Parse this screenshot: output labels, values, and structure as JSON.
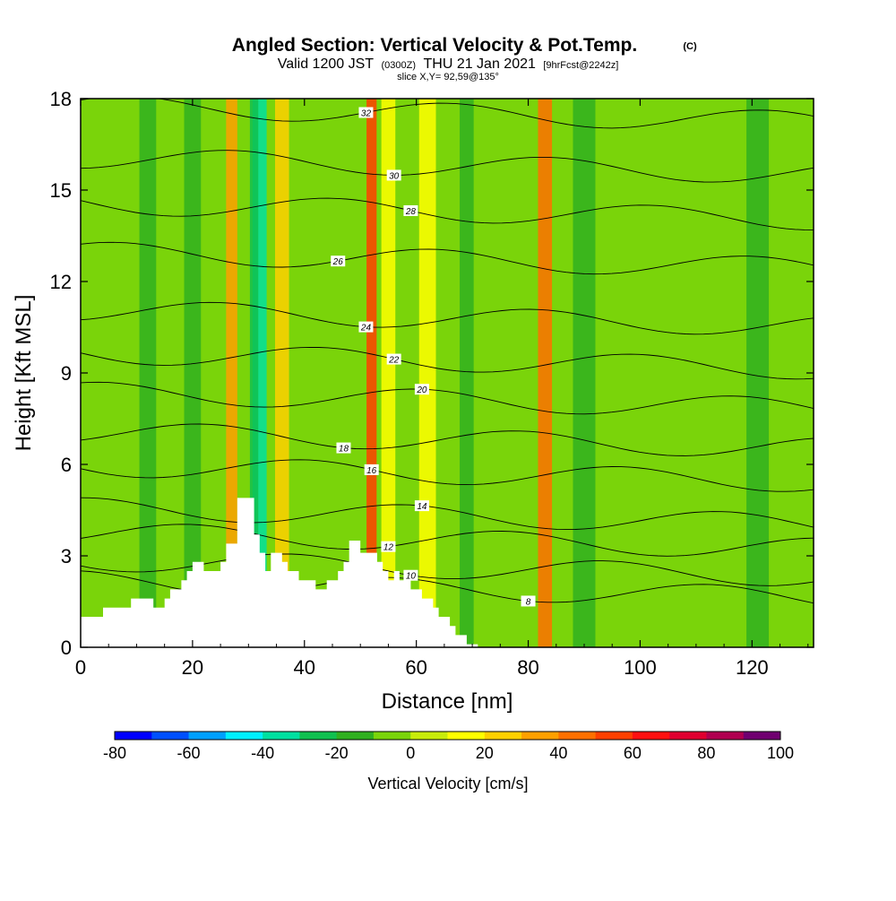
{
  "chart_data": {
    "type": "heatmap",
    "title_main": "Angled Section: Vertical Velocity & Pot.Temp.",
    "title_units": "(C)",
    "subtitle_parts": [
      "Valid 1200 JST",
      "(0300Z)",
      "THU 21 Jan 2021",
      "[9hrFcst@2242z]"
    ],
    "slice_label": "slice X,Y= 92,59@135°",
    "xlabel": "Distance [nm]",
    "ylabel": "Height [Kft MSL]",
    "xlim": [
      0,
      131
    ],
    "ylim": [
      0,
      18
    ],
    "x_ticks": [
      "0",
      "20",
      "40",
      "60",
      "80",
      "100",
      "120"
    ],
    "y_ticks": [
      "0",
      "3",
      "6",
      "9",
      "12",
      "15",
      "18"
    ],
    "colorbar": {
      "label": "Vertical Velocity [cm/s]",
      "ticks": [
        "-80",
        "-60",
        "-40",
        "-20",
        "0",
        "20",
        "40",
        "60",
        "80",
        "100"
      ],
      "levels": [
        -80,
        -70,
        -60,
        -50,
        -40,
        -30,
        -20,
        -10,
        0,
        10,
        20,
        30,
        40,
        50,
        60,
        70,
        80,
        90,
        100
      ],
      "colors": [
        "#0000ff",
        "#0050ff",
        "#00a0ff",
        "#00f0ff",
        "#00e0a0",
        "#10c050",
        "#30b020",
        "#7ad40a",
        "#c8ec0a",
        "#ffff00",
        "#ffd000",
        "#ffa000",
        "#ff7000",
        "#ff4000",
        "#ff1010",
        "#e00030",
        "#b00050",
        "#700070"
      ]
    },
    "terrain": {
      "x": [
        0,
        4,
        4,
        9,
        9,
        13,
        13,
        15,
        15,
        16,
        16,
        18,
        18,
        19,
        19,
        20,
        20,
        22,
        22,
        25,
        25,
        26,
        26,
        28,
        28,
        31,
        31,
        32,
        32,
        33,
        33,
        34,
        34,
        36,
        36,
        37,
        37,
        39,
        39,
        42,
        42,
        44,
        44,
        46,
        46,
        47,
        47,
        48,
        48,
        50,
        50,
        53,
        53,
        54,
        54,
        55,
        55,
        56,
        56,
        57,
        57,
        59,
        59,
        61,
        61,
        63,
        63,
        64,
        64,
        66,
        66,
        67,
        67,
        69,
        69,
        71,
        71,
        131
      ],
      "y": [
        1.0,
        1.0,
        1.3,
        1.3,
        1.6,
        1.6,
        1.3,
        1.3,
        1.6,
        1.6,
        1.9,
        1.9,
        2.2,
        2.2,
        2.5,
        2.5,
        2.8,
        2.8,
        2.5,
        2.5,
        2.8,
        2.8,
        3.4,
        3.4,
        4.9,
        4.9,
        3.7,
        3.7,
        3.1,
        3.1,
        2.5,
        2.5,
        3.1,
        3.1,
        2.8,
        2.8,
        2.5,
        2.5,
        2.2,
        2.2,
        1.9,
        1.9,
        2.2,
        2.2,
        2.5,
        2.5,
        2.8,
        2.8,
        3.5,
        3.5,
        3.1,
        3.1,
        2.8,
        2.8,
        2.5,
        2.5,
        2.2,
        2.2,
        2.5,
        2.5,
        2.2,
        2.2,
        1.9,
        1.9,
        1.6,
        1.6,
        1.3,
        1.3,
        1.0,
        1.0,
        0.7,
        0.7,
        0.4,
        0.4,
        0.1,
        0.1,
        0.0,
        0.0
      ]
    },
    "velocity_bands": [
      {
        "x": 12,
        "w": 3,
        "v": -15
      },
      {
        "x": 20,
        "w": 3,
        "v": -15
      },
      {
        "x": 27,
        "w": 2,
        "v": 35
      },
      {
        "x": 32,
        "w": 2.5,
        "v": -40
      },
      {
        "x": 31,
        "w": 1.5,
        "v": -25
      },
      {
        "x": 36,
        "w": 2.5,
        "v": 20
      },
      {
        "x": 46,
        "w": 3,
        "v": -10
      },
      {
        "x": 52,
        "w": 1.8,
        "v": 50
      },
      {
        "x": 55,
        "w": 2.5,
        "v": 15
      },
      {
        "x": 62,
        "w": 3,
        "v": 15
      },
      {
        "x": 69,
        "w": 2.5,
        "v": -15
      },
      {
        "x": 83,
        "w": 2.5,
        "v": 40
      },
      {
        "x": 90,
        "w": 4,
        "v": -15
      },
      {
        "x": 121,
        "w": 4,
        "v": -15
      }
    ],
    "theta_levels": [
      {
        "value": 8,
        "y": 1.9,
        "label_x": 80
      },
      {
        "value": 10,
        "y": 2.6,
        "label_x": 59
      },
      {
        "value": 12,
        "y": 3.5,
        "label_x": 55
      },
      {
        "value": 14,
        "y": 4.3,
        "label_x": 61
      },
      {
        "value": 16,
        "y": 5.7,
        "label_x": 52
      },
      {
        "value": 18,
        "y": 6.8,
        "label_x": 47
      },
      {
        "value": 20,
        "y": 8.1,
        "label_x": 61
      },
      {
        "value": 22,
        "y": 9.4,
        "label_x": 56
      },
      {
        "value": 24,
        "y": 10.8,
        "label_x": 51
      },
      {
        "value": 26,
        "y": 12.7,
        "label_x": 46
      },
      {
        "value": 28,
        "y": 14.3,
        "label_x": 59
      },
      {
        "value": 30,
        "y": 15.8,
        "label_x": 56
      },
      {
        "value": 32,
        "y": 17.5,
        "label_x": 51
      }
    ]
  }
}
